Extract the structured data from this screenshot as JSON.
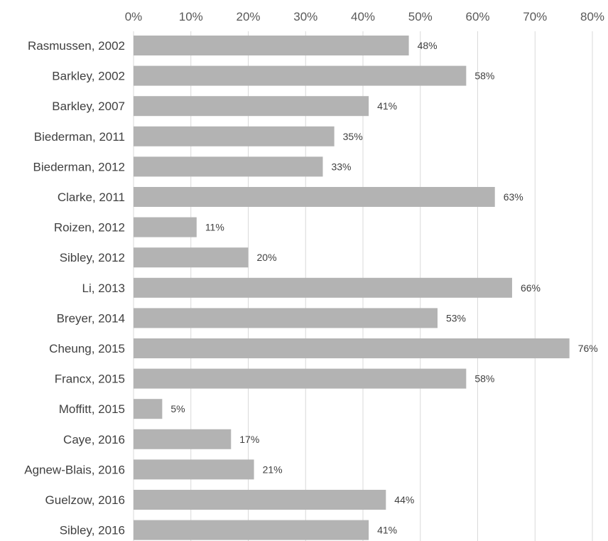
{
  "chart_data": {
    "type": "bar",
    "orientation": "horizontal",
    "categories": [
      "Rasmussen, 2002",
      "Barkley, 2002",
      "Barkley, 2007",
      "Biederman, 2011",
      "Biederman, 2012",
      "Clarke, 2011",
      "Roizen, 2012",
      "Sibley, 2012",
      "Li, 2013",
      "Breyer, 2014",
      "Cheung, 2015",
      "Francx, 2015",
      "Moffitt, 2015",
      "Caye, 2016",
      "Agnew-Blais, 2016",
      "Guelzow, 2016",
      "Sibley, 2016"
    ],
    "values": [
      48,
      58,
      41,
      35,
      33,
      63,
      11,
      20,
      66,
      53,
      76,
      58,
      5,
      17,
      21,
      44,
      41
    ],
    "value_labels": [
      "48%",
      "58%",
      "41%",
      "35%",
      "33%",
      "63%",
      "11%",
      "20%",
      "66%",
      "53%",
      "76%",
      "58%",
      "5%",
      "17%",
      "21%",
      "44%",
      "41%"
    ],
    "xlim": [
      0,
      80
    ],
    "x_ticks": [
      0,
      10,
      20,
      30,
      40,
      50,
      60,
      70,
      80
    ],
    "x_tick_labels": [
      "0%",
      "10%",
      "20%",
      "30%",
      "40%",
      "50%",
      "60%",
      "70%",
      "80%"
    ],
    "x_axis_position": "top",
    "grid": true,
    "title": "",
    "xlabel": "",
    "ylabel": "",
    "bar_color": "#b3b3b3",
    "grid_color": "#d9d9d9",
    "text_color": "#404040"
  }
}
